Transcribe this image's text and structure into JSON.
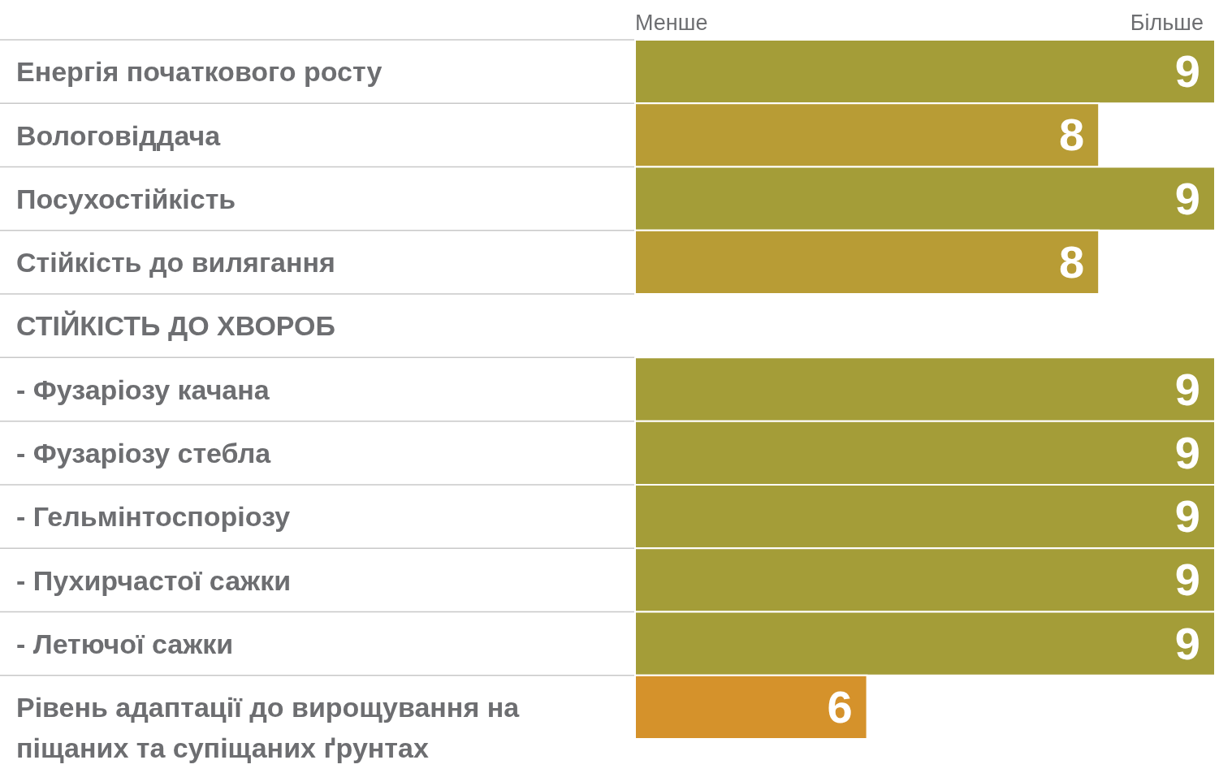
{
  "chart_data": {
    "type": "bar",
    "orientation": "horizontal",
    "categories": [
      "Енергія початкового росту",
      "Вологовіддача",
      "Посухостійкість",
      "Стійкість до вилягання",
      "СТІЙКІСТЬ ДО ХВОРОБ",
      "- Фузаріозу качана",
      "- Фузаріозу стебла",
      "- Гельмінтоспоріозу",
      "- Пухирчастої сажки",
      "- Летючої сажки",
      "Рівень адаптації до вирощування на піщаних та супіщаних ґрунтах"
    ],
    "values": [
      9,
      8,
      9,
      8,
      null,
      9,
      9,
      9,
      9,
      9,
      6
    ],
    "colors": [
      "#a49d38",
      "#b89c35",
      "#a49d38",
      "#b89c35",
      null,
      "#a49d38",
      "#a49d38",
      "#a49d38",
      "#a49d38",
      "#a49d38",
      "#d5922b"
    ],
    "xlim": [
      4,
      9
    ],
    "annotations": [
      "Менше",
      "Більше"
    ],
    "data_labels": true,
    "grid": "y"
  }
}
